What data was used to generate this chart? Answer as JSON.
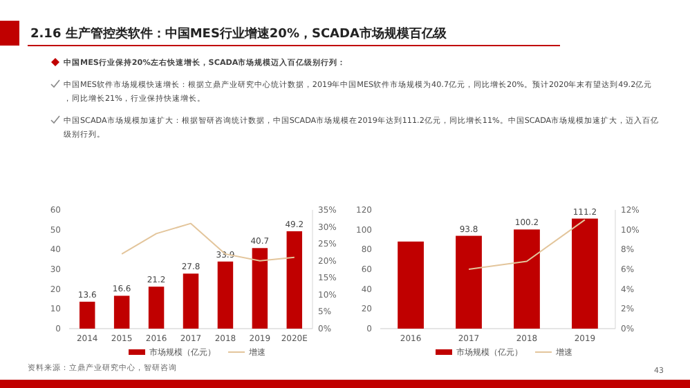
{
  "chart_data": [
    {
      "type": "bar",
      "title": "2.16 生产管控类软件：中国MES行业增速20%，SCADA市场规模百亿级",
      "annotations": [
        "中国MES行业保持20%左右快速增长，SCADA市场规模迈入百亿级别行列：",
        "中国MES软件市场规模快速增长：根据立鼎产业研究中心统计数据，2019年中国MES软件市场规模为40.7亿元，同比增长20%。预计2020年末有望达到49.2亿元，同比增长21%，行业保持快速增长。",
        "中国SCADA市场规模加速扩大：根据智研咨询统计数据，中国SCADA市场规模在2019年达到111.2亿元，同比增长11%。中国SCADA市场规模加速扩大，迈入百亿级别行列。",
        "资料来源：立鼎产业研究中心，智研咨询"
      ],
      "categories": [
        "2014",
        "2015",
        "2016",
        "2017",
        "2018",
        "2019",
        "2020E"
      ],
      "series": [
        {
          "name": "市场规模（亿元）",
          "color": "#c00000",
          "values": [
            13.6,
            16.6,
            21.2,
            27.8,
            33.9,
            40.7,
            49.2
          ],
          "value_labels": [
            "13.6",
            "16.6",
            "21.2",
            "27.8",
            "33.9",
            "40.7",
            "49.2"
          ]
        },
        {
          "name": "增速",
          "type": "line",
          "axis": "y2",
          "color": "#e3c59b",
          "values": [
            null,
            22,
            28,
            31,
            22,
            20,
            21
          ]
        }
      ],
      "ylim": [
        0,
        60
      ],
      "yticks": [
        0,
        10,
        20,
        30,
        40,
        50,
        60
      ],
      "y2lim": [
        0,
        35
      ],
      "y2ticks": [
        {
          "value": 0,
          "label": "0%"
        },
        {
          "value": 5,
          "label": "5%"
        },
        {
          "value": 10,
          "label": "10%"
        },
        {
          "value": 15,
          "label": "15%"
        },
        {
          "value": 20,
          "label": "20%"
        },
        {
          "value": 25,
          "label": "25%"
        },
        {
          "value": 30,
          "label": "30%"
        },
        {
          "value": 35,
          "label": "35%"
        }
      ],
      "legend": "bottom"
    },
    {
      "type": "bar",
      "annotations": [
        "43"
      ],
      "categories": [
        "2016",
        "2017",
        "2018",
        "2019"
      ],
      "series": [
        {
          "name": "市场规模（亿元）",
          "color": "#c00000",
          "values": [
            88,
            93.8,
            100.2,
            111.2
          ],
          "value_labels": [
            null,
            "93.8",
            "100.2",
            "111.2"
          ]
        },
        {
          "name": "增速",
          "type": "line",
          "axis": "y2",
          "color": "#e3c59b",
          "values": [
            null,
            6,
            6.8,
            11
          ]
        }
      ],
      "ylim": [
        0,
        120
      ],
      "yticks": [
        0,
        20,
        40,
        60,
        80,
        100,
        120
      ],
      "y2lim": [
        0,
        12
      ],
      "y2ticks": [
        {
          "value": 0,
          "label": "0%"
        },
        {
          "value": 2,
          "label": "2%"
        },
        {
          "value": 4,
          "label": "4%"
        },
        {
          "value": 6,
          "label": "6%"
        },
        {
          "value": 8,
          "label": "8%"
        },
        {
          "value": 10,
          "label": "10%"
        },
        {
          "value": 12,
          "label": "12%"
        }
      ],
      "legend": "bottom"
    }
  ]
}
